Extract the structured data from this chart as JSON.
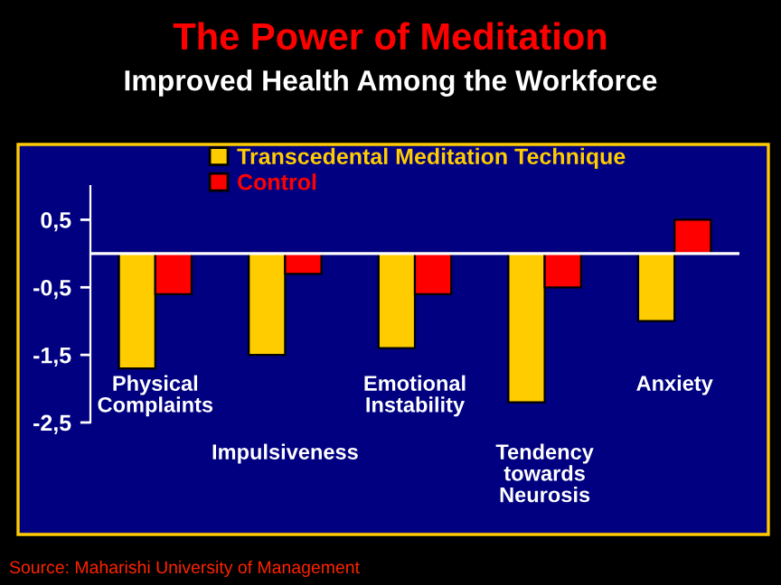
{
  "chart_data": {
    "type": "bar",
    "title": "The Power of Meditation",
    "subtitle": "Improved Health Among the Workforce",
    "categories": [
      "Physical\nComplaints",
      "Impulsiveness",
      "Emotional\nInstability",
      "Tendency\ntowards\nNeurosis",
      "Anxiety"
    ],
    "series": [
      {
        "name": "Transcedental Meditation Technique",
        "color": "#ffcc00",
        "values": [
          -1.7,
          -1.5,
          -1.4,
          -2.2,
          -1.0
        ]
      },
      {
        "name": "Control",
        "color": "#ff0000",
        "values": [
          -0.6,
          -0.3,
          -0.6,
          -0.5,
          0.5
        ]
      }
    ],
    "ylim": [
      -2.5,
      1.0
    ],
    "yticks": [
      {
        "value": 0.5,
        "label": "0,5"
      },
      {
        "value": -0.5,
        "label": "-0,5"
      },
      {
        "value": -1.5,
        "label": "-1,5"
      },
      {
        "value": -2.5,
        "label": "-2,5"
      }
    ],
    "ref_lines": [
      {
        "axis": "y",
        "value": 0,
        "color": "#ffffff"
      }
    ],
    "grid": false,
    "legend": "top left",
    "annotations": [
      "Source: Maharishi University of Management"
    ]
  }
}
